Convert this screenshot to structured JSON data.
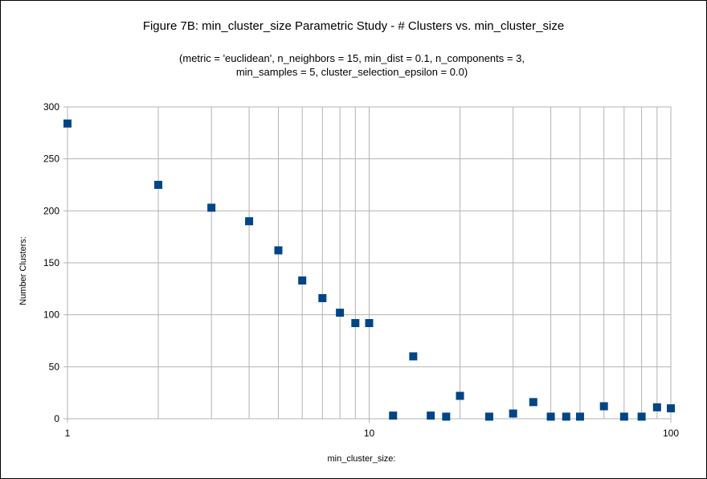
{
  "chart_data": {
    "type": "scatter",
    "title": "Figure 7B: min_cluster_size Parametric Study - # Clusters vs. min_cluster_size",
    "subtitle_lines": [
      "(metric = 'euclidean', n_neighbors = 15, min_dist = 0.1, n_components = 3,",
      "min_samples = 5, cluster_selection_epsilon = 0.0)"
    ],
    "xlabel": "min_cluster_size:",
    "ylabel": "Number Clusters:",
    "x_scale": "log",
    "xlim": [
      1,
      100
    ],
    "ylim": [
      0,
      300
    ],
    "x_ticks": [
      "1",
      "10",
      "100"
    ],
    "y_ticks": [
      "0",
      "50",
      "100",
      "150",
      "200",
      "250",
      "300"
    ],
    "grid": true,
    "legend": "none",
    "marker_color": "#004586",
    "series": [
      {
        "x": [
          1,
          2,
          3,
          4,
          5,
          6,
          7,
          8,
          9,
          10,
          12,
          14,
          16,
          18,
          20,
          25,
          30,
          35,
          40,
          45,
          50,
          60,
          70,
          80,
          90,
          100
        ],
        "y": [
          284,
          225,
          203,
          190,
          162,
          133,
          116,
          102,
          92,
          92,
          3,
          60,
          3,
          2,
          22,
          2,
          5,
          16,
          2,
          2,
          2,
          12,
          2,
          2,
          11,
          10
        ]
      }
    ]
  }
}
